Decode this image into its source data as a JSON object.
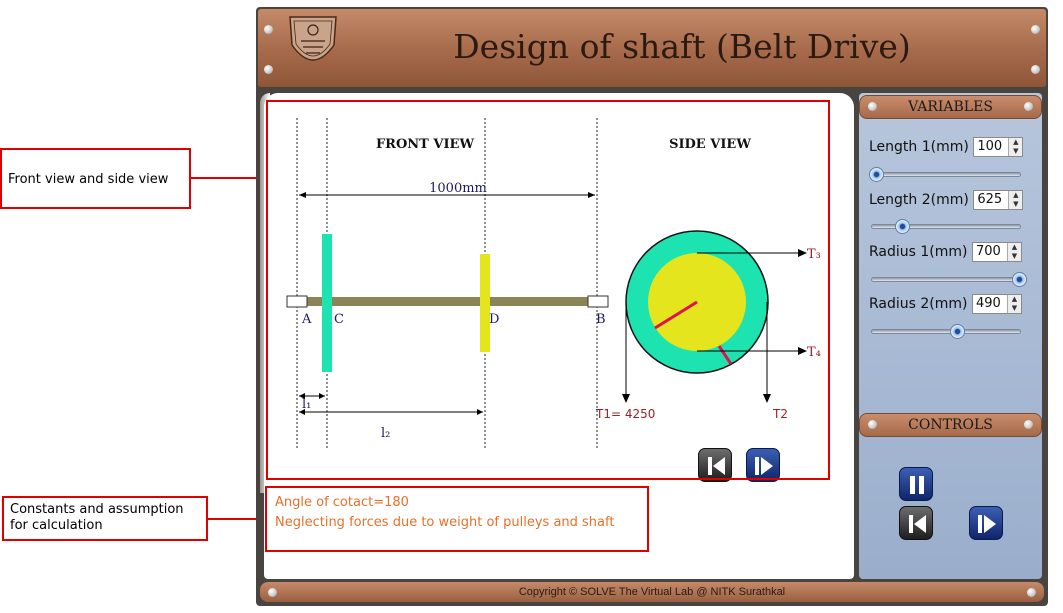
{
  "annotations": {
    "views": "Front view and side view",
    "constants": "Constants and assumption for calculation"
  },
  "title": "Design of shaft (Belt Drive)",
  "logo_icon": "institute-seal-icon",
  "front_view": {
    "heading": "FRONT VIEW",
    "dimension": "1000mm",
    "labels": {
      "a": "A",
      "c": "C",
      "d": "D",
      "b": "B",
      "l1": "l₁",
      "l2": "l₂"
    },
    "colors": {
      "shaft": "#8a8456",
      "pulley_c": "#1de3b0",
      "pulley_d": "#e5e51e"
    }
  },
  "side_view": {
    "heading": "SIDE VIEW",
    "t1": "T1= 4250",
    "t2": "T2",
    "t3": "T₃",
    "t4": "T₄",
    "colors": {
      "outer": "#1de3b0",
      "inner": "#e5e51e",
      "radius_line": "#e0114f"
    }
  },
  "assumptions": [
    "Angle of cotact=180",
    "Neglecting forces due to weight of pulleys and shaft"
  ],
  "variables": {
    "heading": "VARIABLES",
    "items": [
      {
        "label": "Length 1(mm)",
        "value": "100",
        "fraction": 0.0
      },
      {
        "label": "Length 2(mm)",
        "value": "625",
        "fraction": 0.2
      },
      {
        "label": "Radius 1(mm)",
        "value": "700",
        "fraction": 1.0
      },
      {
        "label": "Radius 2(mm)",
        "value": "490",
        "fraction": 0.57
      }
    ]
  },
  "controls": {
    "heading": "CONTROLS",
    "buttons": [
      "pause-icon",
      "step-back-icon",
      "step-forward-icon"
    ]
  },
  "footer": "Copyright © SOLVE The Virtual Lab @ NITK Surathkal"
}
